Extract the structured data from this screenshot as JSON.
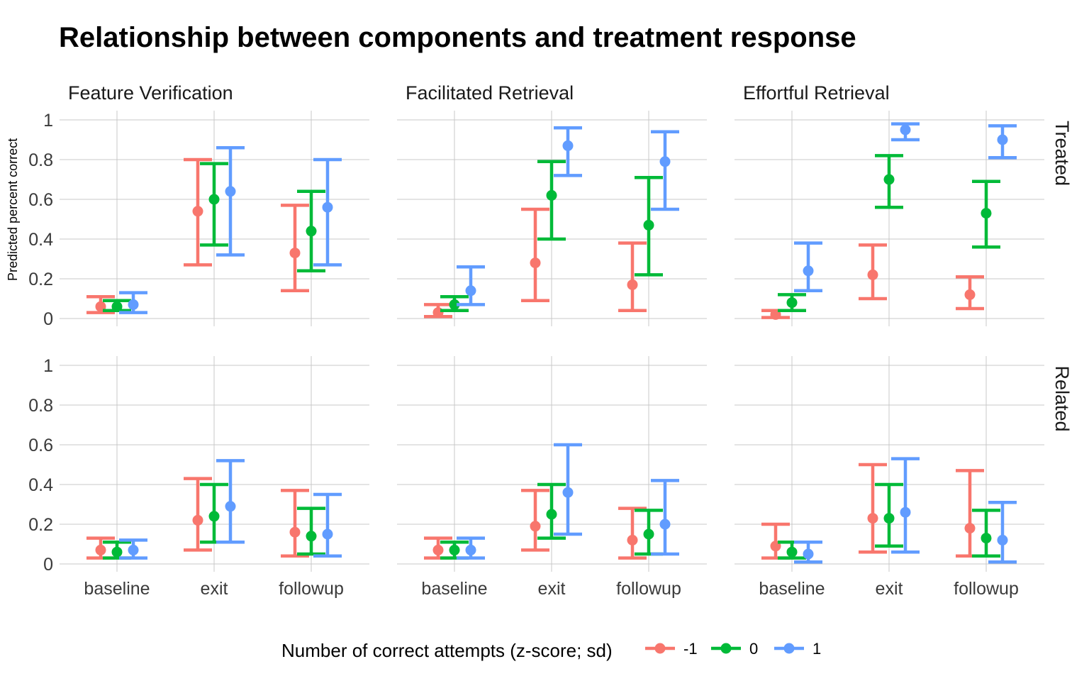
{
  "chart_data": {
    "type": "errorbar",
    "title": "Relationship between components and treatment response",
    "ylabel": "Predicted percent correct",
    "xlabel": "",
    "ylim": [
      0,
      1
    ],
    "y_ticks": [
      "0",
      "0.2",
      "0.4",
      "0.6",
      "0.8",
      "1"
    ],
    "y_tick_values": [
      0,
      0.2,
      0.4,
      0.6,
      0.8,
      1
    ],
    "categories": [
      "baseline",
      "exit",
      "followup"
    ],
    "columns": [
      "Feature Verification",
      "Facilitated Retrieval",
      "Effortful Retrieval"
    ],
    "rows": [
      "Treated",
      "Related"
    ],
    "legend": {
      "title": "Number of correct attempts (z-score; sd)",
      "position": "bottom",
      "entries": [
        {
          "label": "-1",
          "color": "#F8766D"
        },
        {
          "label": "0",
          "color": "#00BA38"
        },
        {
          "label": "1",
          "color": "#619CFF"
        }
      ]
    },
    "panels": [
      {
        "row": "Treated",
        "column": "Feature Verification",
        "series": [
          {
            "name": "-1",
            "values": [
              [
                0.06,
                0.03,
                0.11
              ],
              [
                0.54,
                0.27,
                0.8
              ],
              [
                0.33,
                0.14,
                0.57
              ]
            ]
          },
          {
            "name": "0",
            "values": [
              [
                0.06,
                0.04,
                0.09
              ],
              [
                0.6,
                0.37,
                0.78
              ],
              [
                0.44,
                0.24,
                0.64
              ]
            ]
          },
          {
            "name": "1",
            "values": [
              [
                0.07,
                0.03,
                0.13
              ],
              [
                0.64,
                0.32,
                0.86
              ],
              [
                0.56,
                0.27,
                0.8
              ]
            ]
          }
        ]
      },
      {
        "row": "Treated",
        "column": "Facilitated Retrieval",
        "series": [
          {
            "name": "-1",
            "values": [
              [
                0.03,
                0.01,
                0.07
              ],
              [
                0.28,
                0.09,
                0.55
              ],
              [
                0.17,
                0.04,
                0.38
              ]
            ]
          },
          {
            "name": "0",
            "values": [
              [
                0.07,
                0.04,
                0.11
              ],
              [
                0.62,
                0.4,
                0.79
              ],
              [
                0.47,
                0.22,
                0.71
              ]
            ]
          },
          {
            "name": "1",
            "values": [
              [
                0.14,
                0.07,
                0.26
              ],
              [
                0.87,
                0.72,
                0.96
              ],
              [
                0.79,
                0.55,
                0.94
              ]
            ]
          }
        ]
      },
      {
        "row": "Treated",
        "column": "Effortful Retrieval",
        "series": [
          {
            "name": "-1",
            "values": [
              [
                0.02,
                0.005,
                0.04
              ],
              [
                0.22,
                0.1,
                0.37
              ],
              [
                0.12,
                0.05,
                0.21
              ]
            ]
          },
          {
            "name": "0",
            "values": [
              [
                0.08,
                0.04,
                0.12
              ],
              [
                0.7,
                0.56,
                0.82
              ],
              [
                0.53,
                0.36,
                0.69
              ]
            ]
          },
          {
            "name": "1",
            "values": [
              [
                0.24,
                0.14,
                0.38
              ],
              [
                0.95,
                0.9,
                0.98
              ],
              [
                0.9,
                0.81,
                0.97
              ]
            ]
          }
        ]
      },
      {
        "row": "Related",
        "column": "Feature Verification",
        "series": [
          {
            "name": "-1",
            "values": [
              [
                0.07,
                0.03,
                0.13
              ],
              [
                0.22,
                0.07,
                0.43
              ],
              [
                0.16,
                0.04,
                0.37
              ]
            ]
          },
          {
            "name": "0",
            "values": [
              [
                0.06,
                0.03,
                0.11
              ],
              [
                0.24,
                0.11,
                0.4
              ],
              [
                0.14,
                0.05,
                0.28
              ]
            ]
          },
          {
            "name": "1",
            "values": [
              [
                0.07,
                0.03,
                0.12
              ],
              [
                0.29,
                0.11,
                0.52
              ],
              [
                0.15,
                0.04,
                0.35
              ]
            ]
          }
        ]
      },
      {
        "row": "Related",
        "column": "Facilitated Retrieval",
        "series": [
          {
            "name": "-1",
            "values": [
              [
                0.07,
                0.03,
                0.13
              ],
              [
                0.19,
                0.07,
                0.37
              ],
              [
                0.12,
                0.03,
                0.28
              ]
            ]
          },
          {
            "name": "0",
            "values": [
              [
                0.07,
                0.03,
                0.11
              ],
              [
                0.25,
                0.13,
                0.4
              ],
              [
                0.15,
                0.05,
                0.27
              ]
            ]
          },
          {
            "name": "1",
            "values": [
              [
                0.07,
                0.03,
                0.13
              ],
              [
                0.36,
                0.15,
                0.6
              ],
              [
                0.2,
                0.05,
                0.42
              ]
            ]
          }
        ]
      },
      {
        "row": "Related",
        "column": "Effortful Retrieval",
        "series": [
          {
            "name": "-1",
            "values": [
              [
                0.09,
                0.03,
                0.2
              ],
              [
                0.23,
                0.06,
                0.5
              ],
              [
                0.18,
                0.04,
                0.47
              ]
            ]
          },
          {
            "name": "0",
            "values": [
              [
                0.06,
                0.03,
                0.11
              ],
              [
                0.23,
                0.09,
                0.4
              ],
              [
                0.13,
                0.04,
                0.27
              ]
            ]
          },
          {
            "name": "1",
            "values": [
              [
                0.05,
                0.01,
                0.11
              ],
              [
                0.26,
                0.06,
                0.53
              ],
              [
                0.12,
                0.01,
                0.31
              ]
            ]
          }
        ]
      }
    ]
  }
}
